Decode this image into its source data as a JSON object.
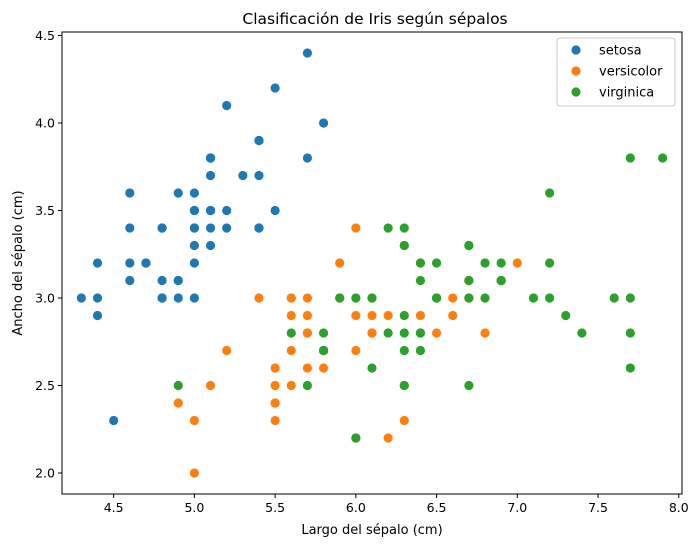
{
  "chart_data": {
    "type": "scatter",
    "title": "Clasificación de Iris según sépalos",
    "xlabel": "Largo del sépalo (cm)",
    "ylabel": "Ancho del sépalo (cm)",
    "xlim": [
      4.18,
      8.02
    ],
    "ylim": [
      1.88,
      4.52
    ],
    "xticks": [
      "4.5",
      "5.0",
      "5.5",
      "6.0",
      "6.5",
      "7.0",
      "7.5",
      "8.0"
    ],
    "yticks": [
      "2.0",
      "2.5",
      "3.0",
      "3.5",
      "4.0",
      "4.5"
    ],
    "grid": false,
    "legend_position": "top-right",
    "series": [
      {
        "name": "setosa",
        "color": "#1f77b4",
        "points": [
          [
            5.1,
            3.5
          ],
          [
            4.9,
            3.0
          ],
          [
            4.7,
            3.2
          ],
          [
            4.6,
            3.1
          ],
          [
            5.0,
            3.6
          ],
          [
            5.4,
            3.9
          ],
          [
            4.6,
            3.4
          ],
          [
            5.0,
            3.4
          ],
          [
            4.4,
            2.9
          ],
          [
            4.9,
            3.1
          ],
          [
            5.4,
            3.7
          ],
          [
            4.8,
            3.4
          ],
          [
            4.8,
            3.0
          ],
          [
            4.3,
            3.0
          ],
          [
            5.8,
            4.0
          ],
          [
            5.7,
            4.4
          ],
          [
            5.4,
            3.9
          ],
          [
            5.1,
            3.5
          ],
          [
            5.7,
            3.8
          ],
          [
            5.1,
            3.8
          ],
          [
            5.4,
            3.4
          ],
          [
            5.1,
            3.7
          ],
          [
            4.6,
            3.6
          ],
          [
            5.1,
            3.3
          ],
          [
            4.8,
            3.4
          ],
          [
            5.0,
            3.0
          ],
          [
            5.0,
            3.4
          ],
          [
            5.2,
            3.5
          ],
          [
            5.2,
            3.4
          ],
          [
            4.7,
            3.2
          ],
          [
            4.8,
            3.1
          ],
          [
            5.4,
            3.4
          ],
          [
            5.2,
            4.1
          ],
          [
            5.5,
            4.2
          ],
          [
            4.9,
            3.1
          ],
          [
            5.0,
            3.2
          ],
          [
            5.5,
            3.5
          ],
          [
            4.9,
            3.6
          ],
          [
            4.4,
            3.0
          ],
          [
            5.1,
            3.4
          ],
          [
            5.0,
            3.5
          ],
          [
            4.5,
            2.3
          ],
          [
            4.4,
            3.2
          ],
          [
            5.0,
            3.5
          ],
          [
            5.1,
            3.8
          ],
          [
            4.8,
            3.0
          ],
          [
            5.1,
            3.8
          ],
          [
            4.6,
            3.2
          ],
          [
            5.3,
            3.7
          ],
          [
            5.0,
            3.3
          ]
        ]
      },
      {
        "name": "versicolor",
        "color": "#ff7f0e",
        "points": [
          [
            7.0,
            3.2
          ],
          [
            6.4,
            3.2
          ],
          [
            6.9,
            3.1
          ],
          [
            5.5,
            2.3
          ],
          [
            6.5,
            2.8
          ],
          [
            5.7,
            2.8
          ],
          [
            6.3,
            3.3
          ],
          [
            4.9,
            2.4
          ],
          [
            6.6,
            2.9
          ],
          [
            5.2,
            2.7
          ],
          [
            5.0,
            2.0
          ],
          [
            5.9,
            3.0
          ],
          [
            6.0,
            2.2
          ],
          [
            6.1,
            2.9
          ],
          [
            5.6,
            2.9
          ],
          [
            6.7,
            3.1
          ],
          [
            5.6,
            3.0
          ],
          [
            5.8,
            2.7
          ],
          [
            6.2,
            2.2
          ],
          [
            5.6,
            2.5
          ],
          [
            5.9,
            3.2
          ],
          [
            6.1,
            2.8
          ],
          [
            6.3,
            2.5
          ],
          [
            6.1,
            2.8
          ],
          [
            6.4,
            2.9
          ],
          [
            6.6,
            3.0
          ],
          [
            6.8,
            2.8
          ],
          [
            6.7,
            3.0
          ],
          [
            6.0,
            2.9
          ],
          [
            5.7,
            2.6
          ],
          [
            5.5,
            2.4
          ],
          [
            5.5,
            2.4
          ],
          [
            5.8,
            2.7
          ],
          [
            6.0,
            2.7
          ],
          [
            5.4,
            3.0
          ],
          [
            6.0,
            3.4
          ],
          [
            6.7,
            3.1
          ],
          [
            6.3,
            2.3
          ],
          [
            5.6,
            3.0
          ],
          [
            5.5,
            2.5
          ],
          [
            5.5,
            2.6
          ],
          [
            6.1,
            3.0
          ],
          [
            5.8,
            2.6
          ],
          [
            5.0,
            2.3
          ],
          [
            5.6,
            2.7
          ],
          [
            5.7,
            3.0
          ],
          [
            5.7,
            2.9
          ],
          [
            6.2,
            2.9
          ],
          [
            5.1,
            2.5
          ],
          [
            5.7,
            2.8
          ]
        ]
      },
      {
        "name": "virginica",
        "color": "#2ca02c",
        "points": [
          [
            6.3,
            3.3
          ],
          [
            5.8,
            2.7
          ],
          [
            7.1,
            3.0
          ],
          [
            6.3,
            2.9
          ],
          [
            6.5,
            3.0
          ],
          [
            7.6,
            3.0
          ],
          [
            4.9,
            2.5
          ],
          [
            7.3,
            2.9
          ],
          [
            6.7,
            2.5
          ],
          [
            7.2,
            3.6
          ],
          [
            6.5,
            3.2
          ],
          [
            6.4,
            2.7
          ],
          [
            6.8,
            3.0
          ],
          [
            5.7,
            2.5
          ],
          [
            5.8,
            2.8
          ],
          [
            6.4,
            3.2
          ],
          [
            6.5,
            3.0
          ],
          [
            7.7,
            3.8
          ],
          [
            7.7,
            2.6
          ],
          [
            6.0,
            2.2
          ],
          [
            6.9,
            3.2
          ],
          [
            5.6,
            2.8
          ],
          [
            7.7,
            2.8
          ],
          [
            6.3,
            2.7
          ],
          [
            6.7,
            3.3
          ],
          [
            7.2,
            3.2
          ],
          [
            6.2,
            2.8
          ],
          [
            6.1,
            3.0
          ],
          [
            6.4,
            2.8
          ],
          [
            7.2,
            3.0
          ],
          [
            7.4,
            2.8
          ],
          [
            7.9,
            3.8
          ],
          [
            6.4,
            2.8
          ],
          [
            6.3,
            2.8
          ],
          [
            6.1,
            2.6
          ],
          [
            7.7,
            3.0
          ],
          [
            6.3,
            3.4
          ],
          [
            6.4,
            3.1
          ],
          [
            6.0,
            3.0
          ],
          [
            6.9,
            3.1
          ],
          [
            6.7,
            3.1
          ],
          [
            6.9,
            3.1
          ],
          [
            5.8,
            2.7
          ],
          [
            6.8,
            3.2
          ],
          [
            6.7,
            3.3
          ],
          [
            6.7,
            3.0
          ],
          [
            6.3,
            2.5
          ],
          [
            6.5,
            3.0
          ],
          [
            6.2,
            3.4
          ],
          [
            5.9,
            3.0
          ]
        ]
      }
    ]
  }
}
